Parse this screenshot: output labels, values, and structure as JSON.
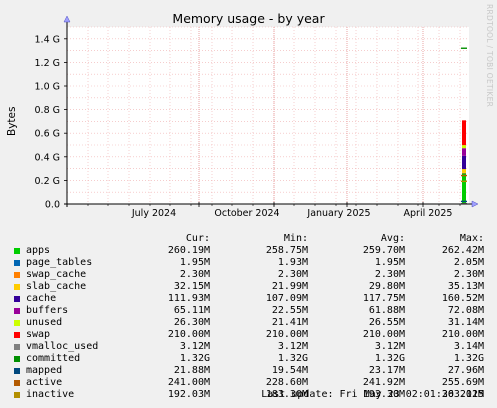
{
  "title": "Memory usage - by year",
  "watermark": "RRDTOOL / TOBI OETIKER",
  "legend_header": {
    "cur": "Cur:",
    "min": "Min:",
    "avg": "Avg:",
    "max": "Max:"
  },
  "last_update": "Last update: Fri May 23 02:01:36 2025",
  "chart_data": {
    "type": "area",
    "title": "Memory usage - by year",
    "ylabel": "Bytes",
    "ylim": [
      0,
      1.5
    ],
    "y_unit": "G",
    "y_ticks": [
      0.0,
      0.2,
      0.4,
      0.6,
      0.8,
      1.0,
      1.2,
      1.4
    ],
    "y_tick_labels": [
      "0.0",
      "0.2 G",
      "0.4 G",
      "0.6 G",
      "0.8 G",
      "1.0 G",
      "1.2 G",
      "1.4 G"
    ],
    "x_tick_labels": [
      "July 2024",
      "October 2024",
      "January 2025",
      "April 2025"
    ],
    "grid": true,
    "legend_position": "bottom",
    "data_period": "2025-05",
    "series": [
      {
        "name": "apps",
        "color": "#00cc00",
        "cur": "260.19M",
        "min": "258.75M",
        "avg": "259.70M",
        "max": "262.42M",
        "value_g": 0.26
      },
      {
        "name": "page_tables",
        "color": "#0066b3",
        "cur": "1.95M",
        "min": "1.93M",
        "avg": "1.95M",
        "max": "2.05M",
        "value_g": 0.002
      },
      {
        "name": "swap_cache",
        "color": "#ff8000",
        "cur": "2.30M",
        "min": "2.30M",
        "avg": "2.30M",
        "max": "2.30M",
        "value_g": 0.002
      },
      {
        "name": "slab_cache",
        "color": "#ffcc00",
        "cur": "32.15M",
        "min": "21.99M",
        "avg": "29.80M",
        "max": "35.13M",
        "value_g": 0.032
      },
      {
        "name": "cache",
        "color": "#330099",
        "cur": "111.93M",
        "min": "107.09M",
        "avg": "117.75M",
        "max": "160.52M",
        "value_g": 0.112
      },
      {
        "name": "buffers",
        "color": "#990099",
        "cur": "65.11M",
        "min": "22.55M",
        "avg": "61.88M",
        "max": "72.08M",
        "value_g": 0.065
      },
      {
        "name": "unused",
        "color": "#ccff00",
        "cur": "26.30M",
        "min": "21.41M",
        "avg": "26.55M",
        "max": "31.14M",
        "value_g": 0.026
      },
      {
        "name": "swap",
        "color": "#ff0000",
        "cur": "210.00M",
        "min": "210.00M",
        "avg": "210.00M",
        "max": "210.00M",
        "value_g": 0.21
      },
      {
        "name": "vmalloc_used",
        "color": "#808080",
        "cur": "3.12M",
        "min": "3.12M",
        "avg": "3.12M",
        "max": "3.14M",
        "line_g": 0.003
      },
      {
        "name": "committed",
        "color": "#008f00",
        "cur": "1.32G",
        "min": "1.32G",
        "avg": "1.32G",
        "max": "1.32G",
        "line_g": 1.32
      },
      {
        "name": "mapped",
        "color": "#00487d",
        "cur": "21.88M",
        "min": "19.54M",
        "avg": "23.17M",
        "max": "27.96M",
        "line_g": 0.022
      },
      {
        "name": "active",
        "color": "#b35a00",
        "cur": "241.00M",
        "min": "228.60M",
        "avg": "241.92M",
        "max": "255.69M",
        "line_g": 0.241
      },
      {
        "name": "inactive",
        "color": "#b38f00",
        "cur": "192.03M",
        "min": "183.30M",
        "avg": "193.30M",
        "max": "203.11M",
        "line_g": 0.192
      }
    ]
  }
}
